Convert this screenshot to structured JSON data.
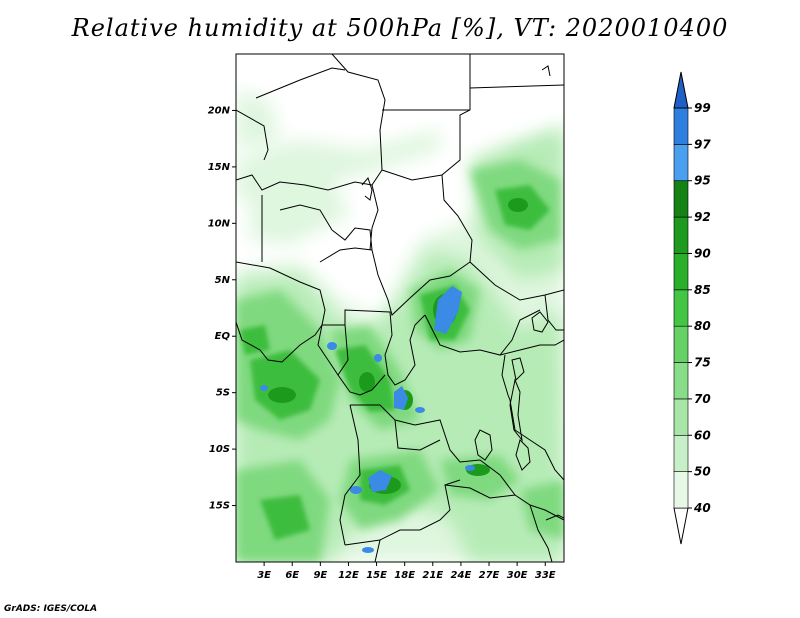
{
  "title": "Relative humidity at 500hPa [%], VT: 2020010400",
  "credit": "GrADS: IGES/COLA",
  "map": {
    "projection": "lat-lon",
    "lon_range": [
      0,
      35
    ],
    "lat_range": [
      -20,
      25
    ],
    "lat_labels": [
      "20N",
      "15N",
      "10N",
      "5N",
      "EQ",
      "5S",
      "10S",
      "15S"
    ],
    "lat_values": [
      20,
      15,
      10,
      5,
      0,
      -5,
      -10,
      -15
    ],
    "lon_labels": [
      "3E",
      "6E",
      "9E",
      "12E",
      "15E",
      "18E",
      "21E",
      "24E",
      "27E",
      "30E",
      "33E"
    ],
    "lon_values": [
      3,
      6,
      9,
      12,
      15,
      18,
      21,
      24,
      27,
      30,
      33
    ],
    "land_color": "#ffffff",
    "border_color": "#000000"
  },
  "colorbar": {
    "levels": [
      "40",
      "50",
      "60",
      "70",
      "75",
      "80",
      "85",
      "90",
      "92",
      "95",
      "97",
      "99"
    ],
    "level_values": [
      40,
      50,
      60,
      70,
      75,
      80,
      85,
      90,
      92,
      95,
      97,
      99
    ],
    "colors": [
      "#ffffff",
      "#e6f9e6",
      "#c8f0c8",
      "#a8e6a8",
      "#88dd88",
      "#66d166",
      "#44c544",
      "#2aaf2a",
      "#1e9a1e",
      "#148214",
      "#4a9fef",
      "#2f7fe0",
      "#1e5fc8"
    ]
  }
}
